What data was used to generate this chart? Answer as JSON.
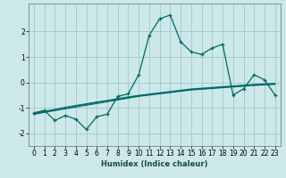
{
  "title": "",
  "xlabel": "Humidex (Indice chaleur)",
  "ylabel": "",
  "background_color": "#cde8e8",
  "grid_color": "#a0c8c8",
  "line_color": "#006868",
  "x_values": [
    0,
    1,
    2,
    3,
    4,
    5,
    6,
    7,
    8,
    9,
    10,
    11,
    12,
    13,
    14,
    15,
    16,
    17,
    18,
    19,
    20,
    21,
    22,
    23
  ],
  "y_main": [
    -1.2,
    -1.1,
    -1.5,
    -1.3,
    -1.45,
    -1.85,
    -1.35,
    -1.25,
    -0.55,
    -0.45,
    0.3,
    1.85,
    2.5,
    2.65,
    1.6,
    1.2,
    1.1,
    1.35,
    1.5,
    -0.5,
    -0.25,
    0.3,
    0.1,
    -0.5
  ],
  "y_linear1": [
    -1.25,
    -1.18,
    -1.11,
    -1.04,
    -0.97,
    -0.9,
    -0.83,
    -0.76,
    -0.69,
    -0.62,
    -0.55,
    -0.5,
    -0.45,
    -0.4,
    -0.35,
    -0.3,
    -0.27,
    -0.24,
    -0.21,
    -0.18,
    -0.15,
    -0.12,
    -0.1,
    -0.08
  ],
  "y_linear2": [
    -1.25,
    -1.17,
    -1.09,
    -1.01,
    -0.93,
    -0.87,
    -0.8,
    -0.73,
    -0.67,
    -0.6,
    -0.53,
    -0.48,
    -0.43,
    -0.38,
    -0.33,
    -0.28,
    -0.25,
    -0.22,
    -0.19,
    -0.16,
    -0.13,
    -0.1,
    -0.08,
    -0.06
  ],
  "y_linear3": [
    -1.22,
    -1.14,
    -1.06,
    -0.98,
    -0.91,
    -0.84,
    -0.77,
    -0.71,
    -0.64,
    -0.57,
    -0.51,
    -0.46,
    -0.41,
    -0.36,
    -0.31,
    -0.26,
    -0.23,
    -0.2,
    -0.17,
    -0.14,
    -0.11,
    -0.08,
    -0.06,
    -0.04
  ],
  "xlim": [
    -0.5,
    23.5
  ],
  "ylim": [
    -2.5,
    3.1
  ],
  "yticks": [
    -2,
    -1,
    0,
    1,
    2
  ],
  "xticks": [
    0,
    1,
    2,
    3,
    4,
    5,
    6,
    7,
    8,
    9,
    10,
    11,
    12,
    13,
    14,
    15,
    16,
    17,
    18,
    19,
    20,
    21,
    22,
    23
  ],
  "tick_fontsize": 5.5,
  "xlabel_fontsize": 6.0
}
